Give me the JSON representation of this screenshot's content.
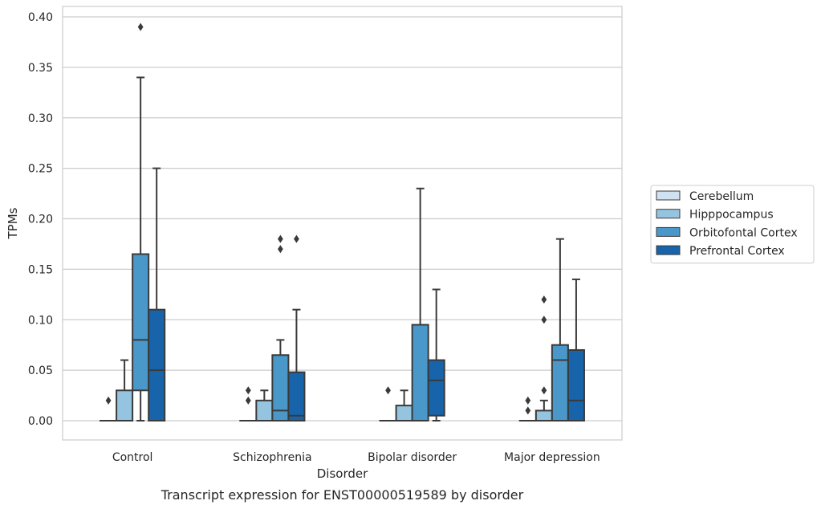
{
  "chart_data": {
    "type": "box",
    "xlabel": "Disorder",
    "ylabel": "TPMs",
    "caption": "Transcript expression for ENST00000519589 by disorder",
    "ylim": [
      -0.019,
      0.41
    ],
    "yticks": [
      0.0,
      0.05,
      0.1,
      0.15,
      0.2,
      0.25,
      0.3,
      0.35,
      0.4
    ],
    "ytick_labels": [
      "0.00",
      "0.05",
      "0.10",
      "0.15",
      "0.20",
      "0.25",
      "0.30",
      "0.35",
      "0.40"
    ],
    "grid": "horizontal",
    "legend_position": "right",
    "categories": [
      "Control",
      "Schizophrenia",
      "Bipolar disorder",
      "Major depression"
    ],
    "series": [
      {
        "name": "Cerebellum",
        "color": "#d0e1f2",
        "boxes": [
          {
            "whislo": 0,
            "q1": 0,
            "med": 0,
            "q3": 0,
            "whishi": 0,
            "fliers": [
              0.02
            ]
          },
          {
            "whislo": 0,
            "q1": 0,
            "med": 0,
            "q3": 0,
            "whishi": 0,
            "fliers": [
              0.02,
              0.03
            ]
          },
          {
            "whislo": 0,
            "q1": 0,
            "med": 0,
            "q3": 0,
            "whishi": 0,
            "fliers": [
              0.03
            ]
          },
          {
            "whislo": 0,
            "q1": 0,
            "med": 0,
            "q3": 0,
            "whishi": 0,
            "fliers": [
              0.01,
              0.02
            ]
          }
        ]
      },
      {
        "name": "Hipppocampus",
        "color": "#94c4df",
        "boxes": [
          {
            "whislo": 0,
            "q1": 0,
            "med": 0,
            "q3": 0.03,
            "whishi": 0.06,
            "fliers": []
          },
          {
            "whislo": 0,
            "q1": 0,
            "med": 0,
            "q3": 0.02,
            "whishi": 0.03,
            "fliers": []
          },
          {
            "whislo": 0,
            "q1": 0,
            "med": 0,
            "q3": 0.015,
            "whishi": 0.03,
            "fliers": []
          },
          {
            "whislo": 0,
            "q1": 0,
            "med": 0,
            "q3": 0.01,
            "whishi": 0.02,
            "fliers": [
              0.03,
              0.1,
              0.12
            ]
          }
        ]
      },
      {
        "name": "Orbitofontal Cortex",
        "color": "#4a98c9",
        "boxes": [
          {
            "whislo": 0,
            "q1": 0.03,
            "med": 0.08,
            "q3": 0.165,
            "whishi": 0.34,
            "fliers": [
              0.39
            ]
          },
          {
            "whislo": 0,
            "q1": 0,
            "med": 0.01,
            "q3": 0.065,
            "whishi": 0.08,
            "fliers": [
              0.17,
              0.18
            ]
          },
          {
            "whislo": 0,
            "q1": 0,
            "med": 0,
            "q3": 0.095,
            "whishi": 0.23,
            "fliers": []
          },
          {
            "whislo": 0,
            "q1": 0,
            "med": 0.06,
            "q3": 0.075,
            "whishi": 0.18,
            "fliers": []
          }
        ]
      },
      {
        "name": "Prefrontal Cortex",
        "color": "#1764ab",
        "boxes": [
          {
            "whislo": 0,
            "q1": 0,
            "med": 0.05,
            "q3": 0.11,
            "whishi": 0.25,
            "fliers": []
          },
          {
            "whislo": 0,
            "q1": 0,
            "med": 0.005,
            "q3": 0.048,
            "whishi": 0.11,
            "fliers": [
              0.18
            ]
          },
          {
            "whislo": 0,
            "q1": 0.005,
            "med": 0.04,
            "q3": 0.06,
            "whishi": 0.13,
            "fliers": []
          },
          {
            "whislo": 0,
            "q1": 0,
            "med": 0.02,
            "q3": 0.07,
            "whishi": 0.14,
            "fliers": []
          }
        ]
      }
    ]
  }
}
